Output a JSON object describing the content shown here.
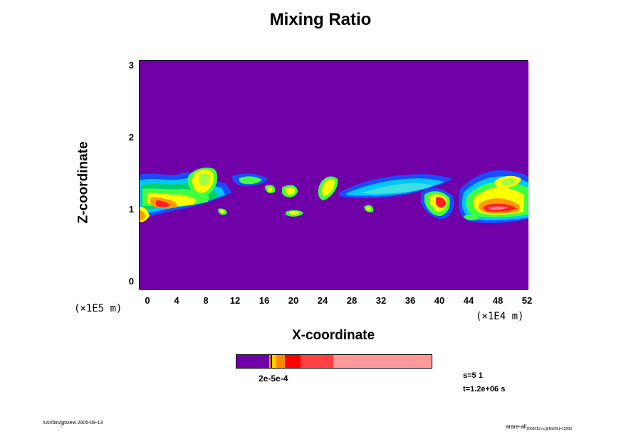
{
  "title": "Mixing Ratio",
  "chart_data": {
    "type": "heatmap",
    "title": "Mixing Ratio",
    "xlabel": "X-coordinate",
    "ylabel": "Z-coordinate",
    "x_unit": "(×1E4 m)",
    "y_unit": "(×1E5 m)",
    "xlim": [
      -1,
      52
    ],
    "ylim": [
      -0.1,
      3.1
    ],
    "x_ticks": [
      "0",
      "4",
      "8",
      "12",
      "16",
      "20",
      "24",
      "28",
      "32",
      "36",
      "40",
      "44",
      "48",
      "52"
    ],
    "y_ticks": [
      "0",
      "1",
      "2",
      "3"
    ],
    "background_color": "#7000a8",
    "colorbar": {
      "labels": "2e-5e-4",
      "colors": [
        "#7000a8",
        "#ff9900",
        "#ffcc00",
        "#ff8800",
        "#ff0000",
        "#ff4040",
        "#ff9999"
      ]
    }
  },
  "annotations": {
    "s": "s=5 1",
    "t": "t=1.2e+06 s",
    "footer_left": "/usr/bin/gpview 2005-09-13",
    "footer_right_main": "arare-all",
    "footer_right_sub": "2005012.nc@MixRt,t=12000"
  }
}
